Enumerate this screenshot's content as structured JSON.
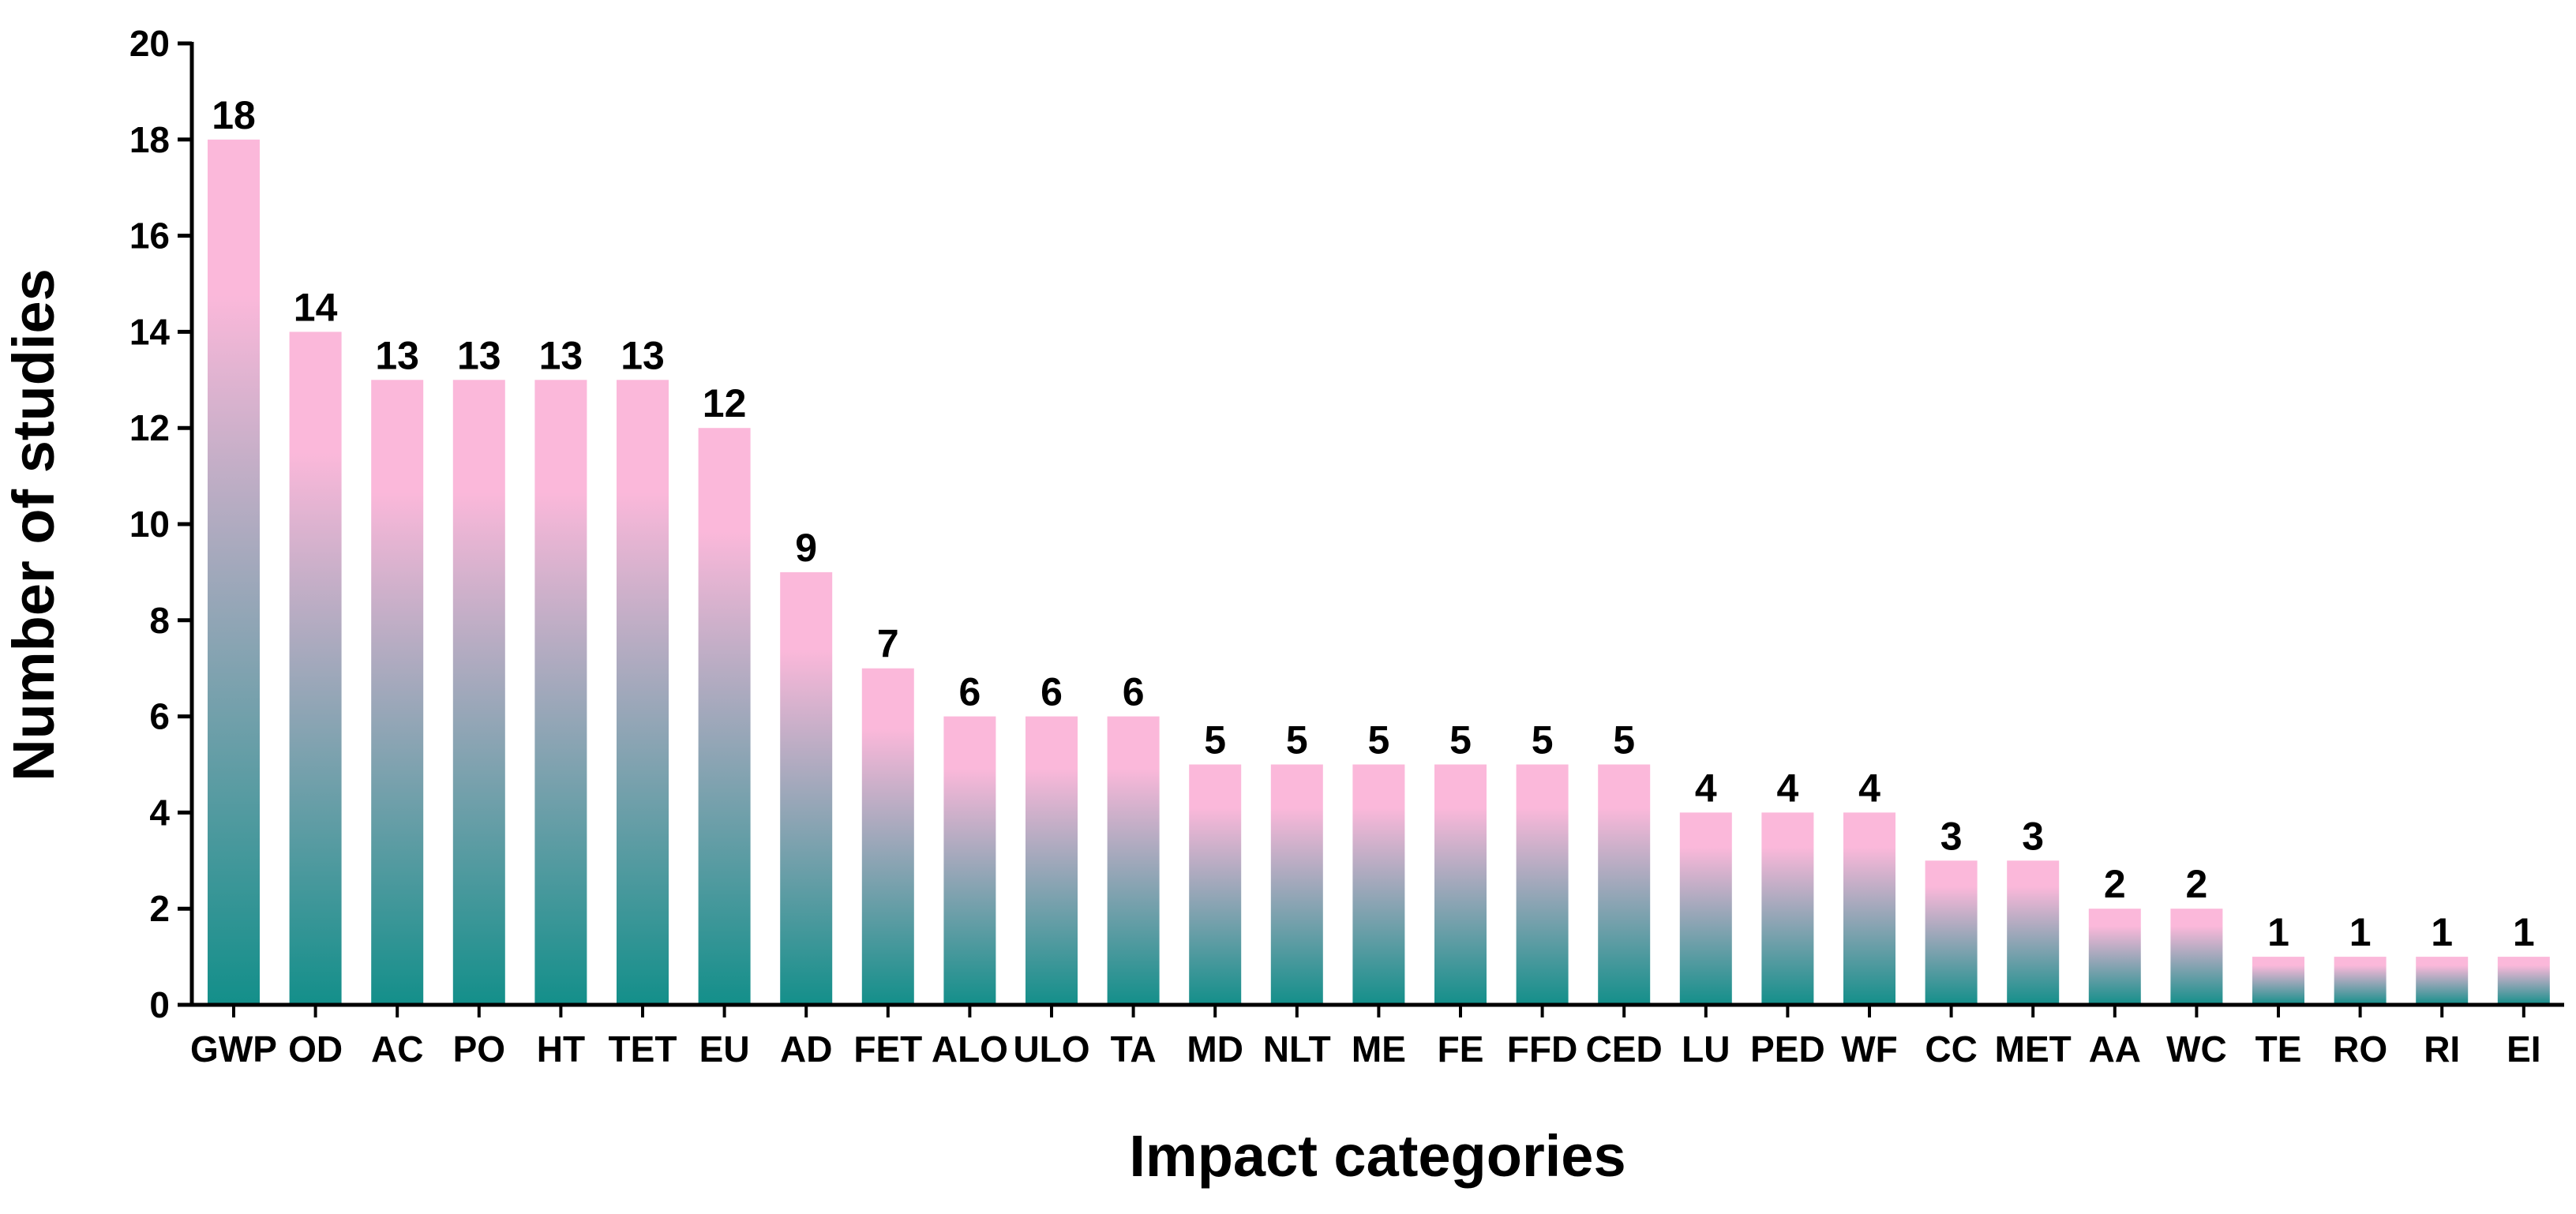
{
  "chart_data": {
    "type": "bar",
    "title": "",
    "xlabel": "Impact categories",
    "ylabel": "Number of studies",
    "ylim": [
      0,
      20
    ],
    "yticks": [
      0,
      2,
      4,
      6,
      8,
      10,
      12,
      14,
      16,
      18,
      20
    ],
    "grid": false,
    "categories": [
      "GWP",
      "OD",
      "AC",
      "PO",
      "HT",
      "TET",
      "EU",
      "AD",
      "FET",
      "ALO",
      "ULO",
      "TA",
      "MD",
      "NLT",
      "ME",
      "FE",
      "FFD",
      "CED",
      "LU",
      "PED",
      "WF",
      "CC",
      "MET",
      "AA",
      "WC",
      "TE",
      "RO",
      "RI",
      "EI"
    ],
    "values": [
      18,
      14,
      13,
      13,
      13,
      13,
      12,
      9,
      7,
      6,
      6,
      6,
      5,
      5,
      5,
      5,
      5,
      5,
      4,
      4,
      4,
      3,
      3,
      2,
      2,
      1,
      1,
      1,
      1
    ],
    "data_labels": [
      "18",
      "14",
      "13",
      "13",
      "13",
      "13",
      "12",
      "9",
      "7",
      "6",
      "6",
      "6",
      "5",
      "5",
      "5",
      "5",
      "5",
      "5",
      "4",
      "4",
      "4",
      "3",
      "3",
      "2",
      "2",
      "1",
      "1",
      "1",
      "1"
    ],
    "colors": {
      "bar_top": "#fbb8da",
      "bar_bottom": "#138f8a",
      "axis": "#000000"
    }
  }
}
